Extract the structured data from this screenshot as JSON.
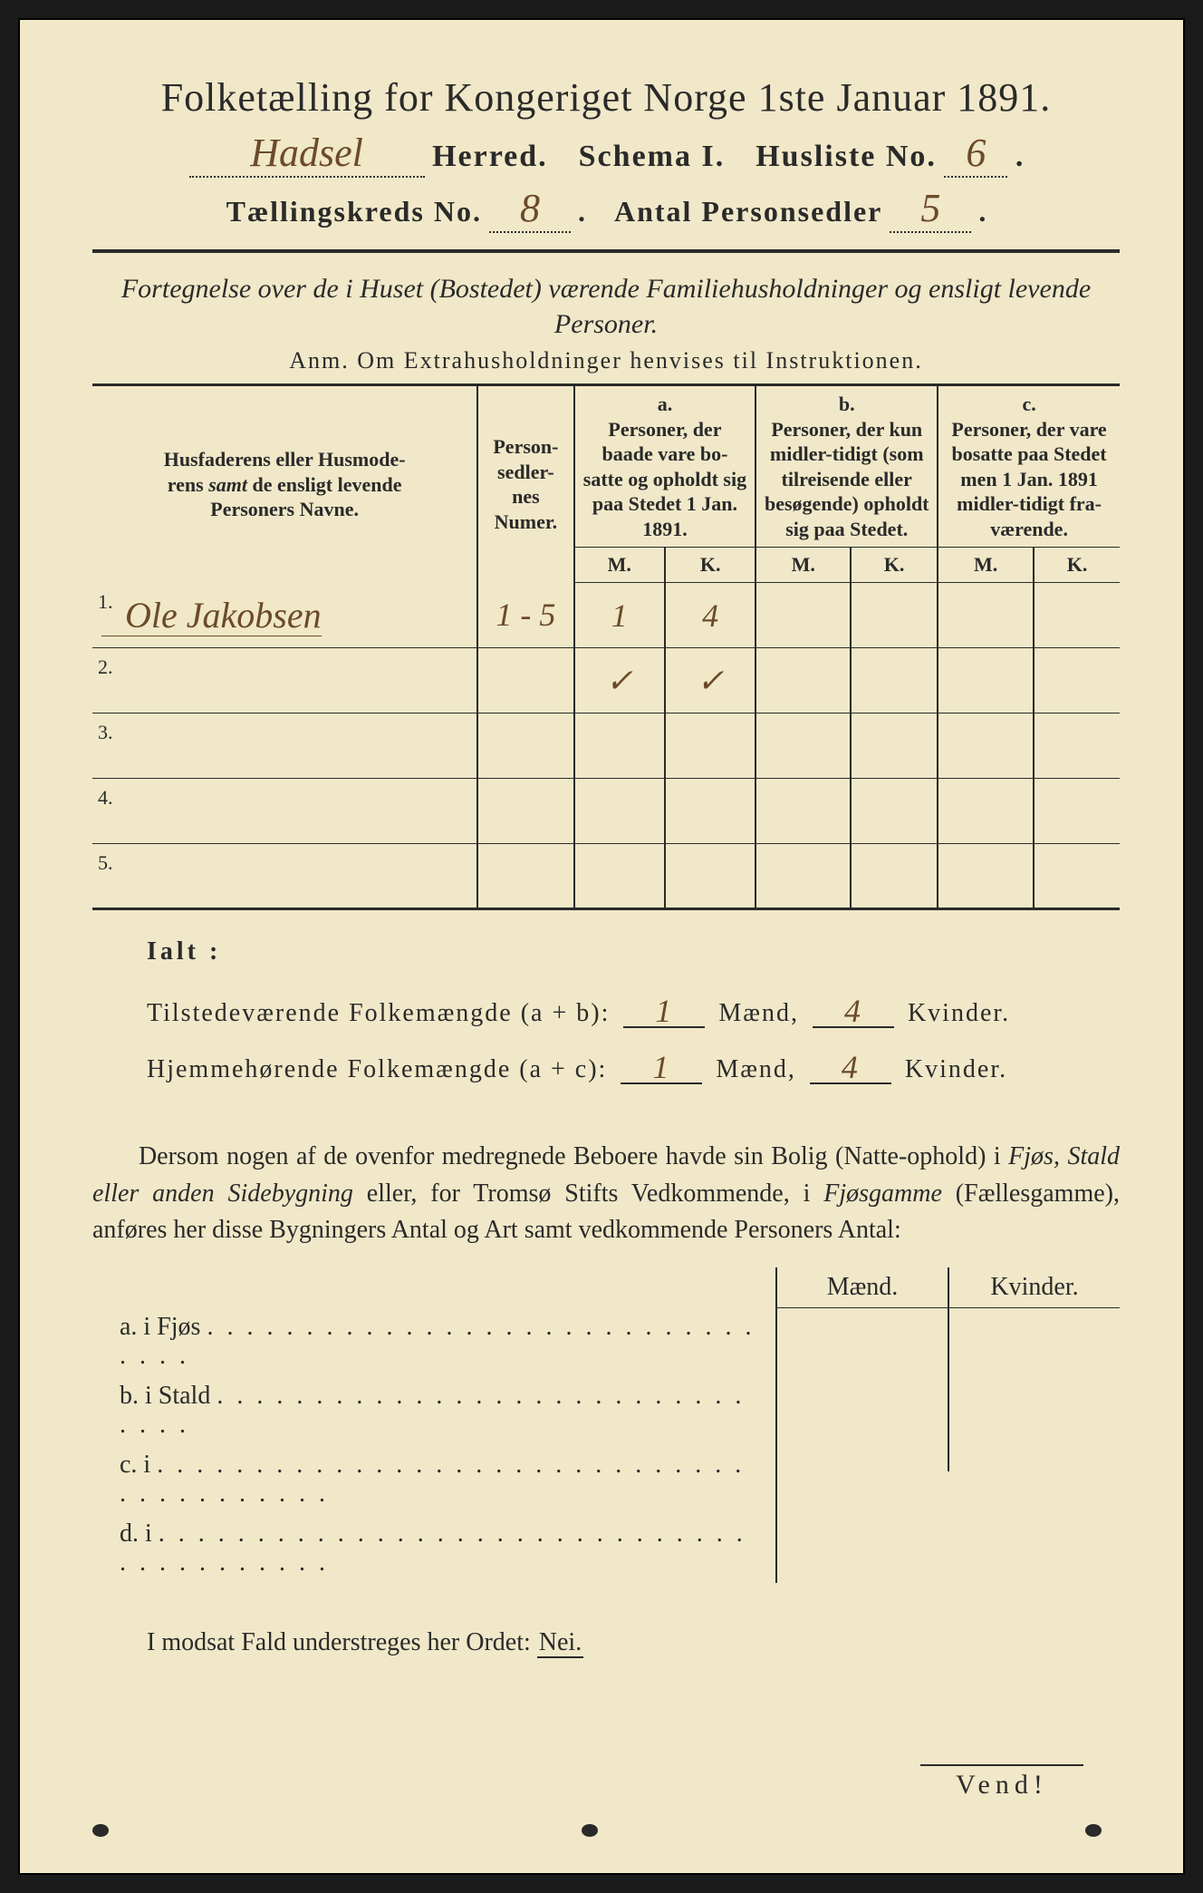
{
  "header": {
    "title": "Folketælling for Kongeriget Norge 1ste Januar 1891.",
    "herred_hand": "Hadsel",
    "herred_label": "Herred.",
    "schema": "Schema I.",
    "husliste_label": "Husliste No.",
    "husliste_no": "6",
    "kreds_label": "Tællingskreds No.",
    "kreds_no": "8",
    "antal_label": "Antal Personsedler",
    "antal_no": "5"
  },
  "subtitle": "Fortegnelse over de i Huset (Bostedet) værende Familiehusholdninger og ensligt levende Personer.",
  "anm": "Anm.  Om Extrahusholdninger henvises til Instruktionen.",
  "table": {
    "col_name_l1": "Husfaderens eller Husmode-",
    "col_name_l2": "rens ",
    "col_name_samt": "samt",
    "col_name_l2b": " de ensligt levende",
    "col_name_l3": "Personers Navne.",
    "col_numer": "Person-sedler-nes Numer.",
    "col_a_head": "a.",
    "col_a": "Personer, der baade vare bo-satte og opholdt sig paa Stedet 1 Jan. 1891.",
    "col_b_head": "b.",
    "col_b": "Personer, der kun midler-tidigt (som tilreisende eller besøgende) opholdt sig paa Stedet.",
    "col_c_head": "c.",
    "col_c": "Personer, der vare bosatte paa Stedet men 1 Jan. 1891 midler-tidigt fra-værende.",
    "m": "M.",
    "k": "K.",
    "rows": [
      {
        "n": "1.",
        "name": "Ole Jakobsen",
        "numer": "1 - 5",
        "aM": "1",
        "aK": "4"
      },
      {
        "n": "2.",
        "name": "",
        "numer": "",
        "aM": "✓",
        "aK": "✓"
      },
      {
        "n": "3.",
        "name": "",
        "numer": "",
        "aM": "",
        "aK": ""
      },
      {
        "n": "4.",
        "name": "",
        "numer": "",
        "aM": "",
        "aK": ""
      },
      {
        "n": "5.",
        "name": "",
        "numer": "",
        "aM": "",
        "aK": ""
      }
    ]
  },
  "ialt": {
    "title": "Ialt :",
    "line1_label": "Tilstedeværende Folkemængde (a + b):",
    "line2_label": "Hjemmehørende Folkemængde (a + c):",
    "mand": "Mænd,",
    "kvinder": "Kvinder.",
    "line1_m": "1",
    "line1_k": "4",
    "line2_m": "1",
    "line2_k": "4"
  },
  "para": {
    "text1": "Dersom nogen af de ovenfor medregnede Beboere havde sin Bolig (Natte-ophold) i ",
    "i1": "Fjøs, Stald eller anden Sidebygning",
    "text2": " eller, for Tromsø Stifts Vedkommende, i ",
    "i2": "Fjøsgamme",
    "text3": " (Fællesgamme), anføres her disse Bygningers Antal og Art samt vedkommende Personers Antal:"
  },
  "buildings": {
    "head_m": "Mænd.",
    "head_k": "Kvinder.",
    "rows": [
      {
        "label": "a.  i      Fjøs",
        "dots": ". . . . . . . . . . . .   . . . . . . . . . . . . . . . . . . . ."
      },
      {
        "label": "b.  i      Stald",
        "dots": ". . . . . . . . . . . . . . . . . . . . . . . . . . . . . . ."
      },
      {
        "label": "c.  i",
        "dots": ". . . . . . . . . . . . . . . . . . . . . . . . . . . . . . . . . . . . . . . . ."
      },
      {
        "label": "d.  i",
        "dots": ". . . . . . . . . . . . . . . . . . . . . . . . . . . . . . . . . . . . . . . . ."
      }
    ]
  },
  "closing": {
    "text": "I modsat Fald understreges her Ordet: ",
    "nei": "Nei."
  },
  "vend": "Vend!",
  "colors": {
    "paper": "#f0e8c8",
    "ink": "#2a2a2a",
    "handwriting": "#6b4a2a"
  }
}
